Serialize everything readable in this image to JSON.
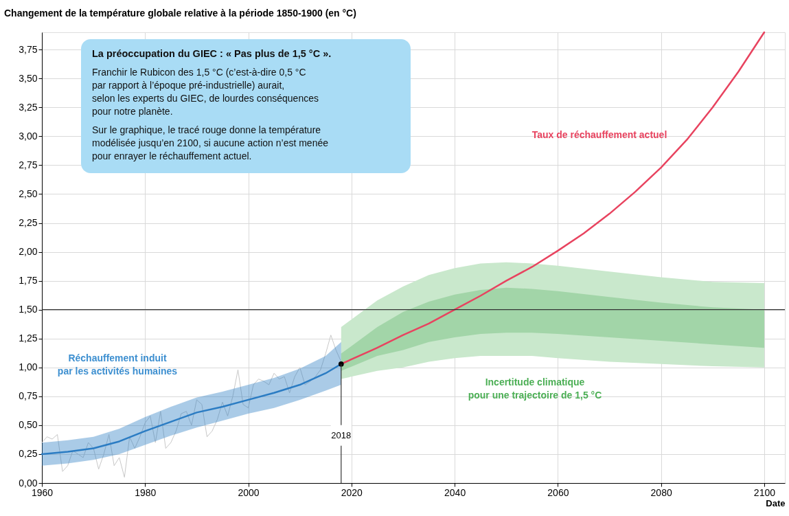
{
  "chart_data": {
    "type": "line",
    "title": "Changement de la température globale relative à la période 1850-1900 (en °C)",
    "xlabel": "Date",
    "xlim": [
      1960,
      2104
    ],
    "ylim": [
      0,
      3.9
    ],
    "xticks": [
      1960,
      1980,
      2000,
      2020,
      2040,
      2060,
      2080,
      2100
    ],
    "yticks": [
      {
        "value": 0,
        "label": "0,00"
      },
      {
        "value": 0.25,
        "label": "0,25"
      },
      {
        "value": 0.5,
        "label": "0,50"
      },
      {
        "value": 0.75,
        "label": "0,75"
      },
      {
        "value": 1,
        "label": "1,00"
      },
      {
        "value": 1.25,
        "label": "1,25"
      },
      {
        "value": 1.5,
        "label": "1,50"
      },
      {
        "value": 1.75,
        "label": "1,75"
      },
      {
        "value": 2,
        "label": "2,00"
      },
      {
        "value": 2.25,
        "label": "2,25"
      },
      {
        "value": 2.5,
        "label": "2,50"
      },
      {
        "value": 2.75,
        "label": "2,75"
      },
      {
        "value": 3,
        "label": "3,00"
      },
      {
        "value": 3.25,
        "label": "3,25"
      },
      {
        "value": 3.5,
        "label": "3,50"
      },
      {
        "value": 3.75,
        "label": "3,75"
      }
    ],
    "grid": true,
    "line_style": "solid",
    "series": [
      {
        "type": "area",
        "color": "#c9e8cc",
        "x": [
          2018,
          2025,
          2030,
          2035,
          2040,
          2045,
          2050,
          2055,
          2060,
          2070,
          2080,
          2090,
          2100
        ],
        "values": [
          null,
          null,
          null,
          null,
          null,
          null,
          null,
          null,
          null,
          null,
          null,
          null,
          null
        ],
        "lower": [
          0.9,
          0.97,
          1.0,
          1.05,
          1.08,
          1.1,
          1.1,
          1.1,
          1.08,
          1.05,
          1.03,
          1.01,
          1.0
        ],
        "upper": [
          1.35,
          1.58,
          1.7,
          1.8,
          1.86,
          1.9,
          1.91,
          1.9,
          1.88,
          1.83,
          1.78,
          1.74,
          1.73
        ]
      },
      {
        "type": "area",
        "color": "#a2d5a8",
        "x": [
          2018,
          2025,
          2030,
          2035,
          2040,
          2045,
          2050,
          2055,
          2060,
          2070,
          2080,
          2090,
          2100
        ],
        "values": [
          null,
          null,
          null,
          null,
          null,
          null,
          null,
          null,
          null,
          null,
          null,
          null,
          null
        ],
        "lower": [
          0.97,
          1.1,
          1.15,
          1.22,
          1.26,
          1.29,
          1.3,
          1.3,
          1.29,
          1.26,
          1.23,
          1.2,
          1.17
        ],
        "upper": [
          1.12,
          1.35,
          1.48,
          1.57,
          1.63,
          1.67,
          1.69,
          1.68,
          1.66,
          1.61,
          1.56,
          1.52,
          1.5
        ]
      },
      {
        "color": "#c8c8c8",
        "x": [
          1960,
          1961,
          1962,
          1963,
          1964,
          1965,
          1966,
          1967,
          1968,
          1969,
          1970,
          1971,
          1972,
          1973,
          1974,
          1975,
          1976,
          1977,
          1978,
          1979,
          1980,
          1981,
          1982,
          1983,
          1984,
          1985,
          1986,
          1987,
          1988,
          1989,
          1990,
          1991,
          1992,
          1993,
          1994,
          1995,
          1996,
          1997,
          1998,
          1999,
          2000,
          2001,
          2002,
          2003,
          2004,
          2005,
          2006,
          2007,
          2008,
          2009,
          2010,
          2011,
          2012,
          2013,
          2014,
          2015,
          2016,
          2017,
          2018
        ],
        "values": [
          0.35,
          0.4,
          0.38,
          0.42,
          0.1,
          0.15,
          0.28,
          0.25,
          0.22,
          0.35,
          0.3,
          0.12,
          0.25,
          0.42,
          0.15,
          0.22,
          0.05,
          0.4,
          0.3,
          0.4,
          0.52,
          0.58,
          0.35,
          0.62,
          0.3,
          0.35,
          0.45,
          0.6,
          0.62,
          0.5,
          0.72,
          0.68,
          0.4,
          0.45,
          0.55,
          0.7,
          0.58,
          0.75,
          0.98,
          0.68,
          0.65,
          0.85,
          0.9,
          0.88,
          0.85,
          0.95,
          0.9,
          0.92,
          0.78,
          0.92,
          1.0,
          0.85,
          0.88,
          0.92,
          0.98,
          1.12,
          1.28,
          1.15,
          1.05
        ]
      },
      {
        "color": "#2b7cc3",
        "x": [
          1960,
          1965,
          1970,
          1975,
          1980,
          1985,
          1990,
          1995,
          2000,
          2005,
          2010,
          2015,
          2018
        ],
        "values": [
          0.25,
          0.27,
          0.3,
          0.36,
          0.45,
          0.53,
          0.61,
          0.66,
          0.72,
          0.78,
          0.85,
          0.95,
          1.03
        ],
        "lower": [
          0.15,
          0.17,
          0.2,
          0.25,
          0.33,
          0.41,
          0.48,
          0.54,
          0.6,
          0.65,
          0.72,
          0.8,
          0.85
        ],
        "upper": [
          0.35,
          0.37,
          0.4,
          0.47,
          0.57,
          0.66,
          0.74,
          0.79,
          0.85,
          0.91,
          0.99,
          1.1,
          1.22
        ]
      },
      {
        "color": "#e8435f",
        "x": [
          2018,
          2025,
          2030,
          2035,
          2040,
          2045,
          2050,
          2055,
          2060,
          2065,
          2070,
          2075,
          2080,
          2085,
          2090,
          2095,
          2100
        ],
        "values": [
          1.03,
          1.17,
          1.28,
          1.38,
          1.5,
          1.62,
          1.75,
          1.87,
          2.01,
          2.16,
          2.33,
          2.52,
          2.73,
          2.97,
          3.25,
          3.56,
          3.9
        ]
      },
      {
        "type": "scatter",
        "color": "#000000",
        "marker": "circle",
        "x": [
          2018
        ],
        "values": [
          1.03
        ]
      }
    ],
    "ref_lines": [
      {
        "axis": "y",
        "value": 1.5,
        "color": "#333333"
      },
      {
        "axis": "x",
        "value": 2018,
        "label": "2018",
        "color": "#333333"
      }
    ],
    "annotations": [
      "Réchauffement induit\npar les activités humaines",
      "Taux de réchauffement actuel",
      "Incertitude climatique\npour une trajectoire de 1,5 °C",
      "La préoccupation du GIEC : « Pas plus de 1,5 °C ».",
      "Franchir le Rubicon des 1,5 °C (c’est-à-dire 0,5 °C\npar rapport à l’époque pré-industrielle) aurait,\nselon les experts du GIEC, de lourdes conséquences\npour notre planète.",
      "Sur le graphique, le tracé rouge donne la température\nmodélisée jusqu’en 2100, si aucune action n’est menée\npour enrayer le réchauffement actuel."
    ]
  }
}
